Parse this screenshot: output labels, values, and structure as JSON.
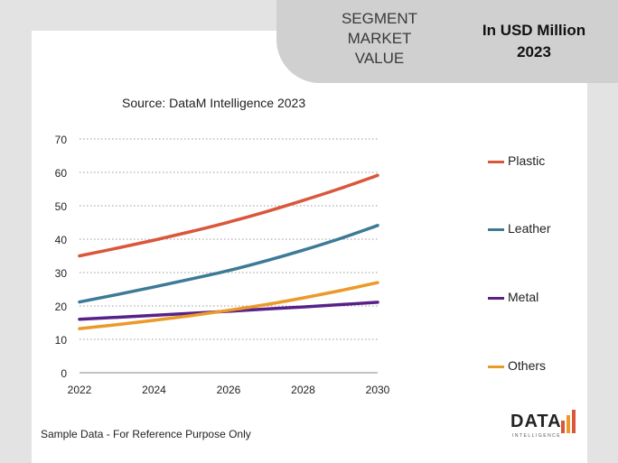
{
  "header": {
    "segment_label_lines": [
      "SEGMENT",
      "MARKET",
      "VALUE"
    ],
    "unit_label_lines": [
      "In USD Million",
      "2023"
    ]
  },
  "source": "Source: DataM Intelligence  2023",
  "footnote": "Sample Data - For Reference Purpose Only",
  "logo": {
    "text": "DATA",
    "subtext": "INTELLIGENCE"
  },
  "chart_data": {
    "type": "line",
    "title": "",
    "xlabel": "",
    "ylabel": "",
    "x_ticks": [
      "2022",
      "2024",
      "2026",
      "2028",
      "2030"
    ],
    "y_ticks": [
      "0",
      "10",
      "20",
      "30",
      "40",
      "50",
      "60",
      "70"
    ],
    "xlim": [
      2022,
      2030
    ],
    "ylim": [
      0,
      70
    ],
    "grid": "horizontal-dotted",
    "legend_position": "right",
    "x": [
      2022,
      2023,
      2024,
      2025,
      2026,
      2027,
      2028,
      2029,
      2030
    ],
    "series": [
      {
        "name": "Plastic",
        "color": "#d9573b",
        "values": [
          35,
          37.3,
          39.7,
          42.3,
          45.1,
          48.2,
          51.6,
          55.2,
          59.1
        ]
      },
      {
        "name": "Leather",
        "color": "#3d7a96",
        "values": [
          21.2,
          23.4,
          25.7,
          28.1,
          30.6,
          33.5,
          36.7,
          40.2,
          44.1
        ]
      },
      {
        "name": "Metal",
        "color": "#58218a",
        "values": [
          16,
          16.6,
          17.2,
          17.8,
          18.4,
          19.1,
          19.7,
          20.4,
          21.1
        ]
      },
      {
        "name": "Others",
        "color": "#eb9a2a",
        "values": [
          13.2,
          14.4,
          15.7,
          17.1,
          18.7,
          20.4,
          22.4,
          24.6,
          27
        ]
      }
    ]
  }
}
